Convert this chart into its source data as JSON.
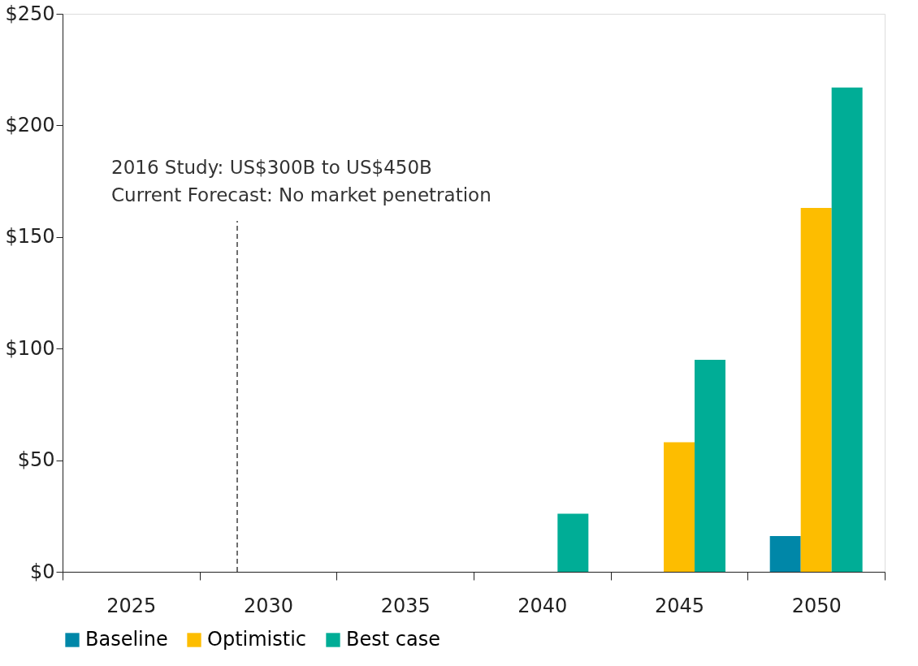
{
  "chart_data": {
    "type": "bar",
    "categories": [
      "2025",
      "2030",
      "2035",
      "2040",
      "2045",
      "2050"
    ],
    "series": [
      {
        "name": "Baseline",
        "color": "#0087a8",
        "values": [
          0,
          0,
          0,
          0,
          0,
          16
        ]
      },
      {
        "name": "Optimistic",
        "color": "#fdbd00",
        "values": [
          0,
          0,
          0,
          0,
          58,
          163
        ]
      },
      {
        "name": "Best case",
        "color": "#00ad96",
        "values": [
          0,
          0,
          0,
          26,
          95,
          217
        ]
      }
    ],
    "ylim": [
      0,
      250
    ],
    "yticks": [
      {
        "value": 0,
        "label": "$0"
      },
      {
        "value": 50,
        "label": "$50"
      },
      {
        "value": 100,
        "label": "$100"
      },
      {
        "value": 150,
        "label": "$150"
      },
      {
        "value": 200,
        "label": "$200"
      },
      {
        "value": 250,
        "label": "$250"
      }
    ],
    "annotations": [
      "2016 Study: US$300B to US$450B",
      "Current Forecast: No market penetration"
    ],
    "ref_lines": [
      {
        "axis": "x",
        "value": "2030",
        "color": "#404040",
        "line_style": "dashed"
      }
    ],
    "grid": false,
    "legend": "bottom"
  }
}
